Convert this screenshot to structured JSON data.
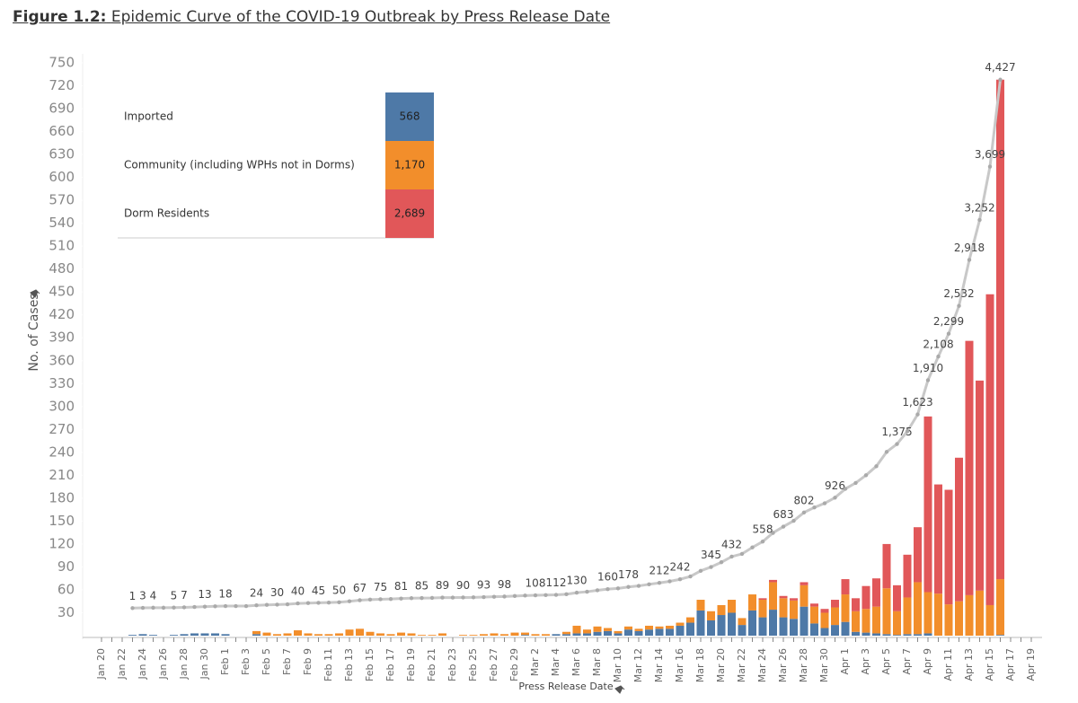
{
  "chart_data": {
    "type": "bar",
    "stacked": true,
    "figure_label": "Figure 1.2:",
    "title": "Epidemic Curve of the COVID-19 Outbreak by Press Release Date",
    "x_label": "Press Release Date",
    "y_label": "No. of Cases",
    "ylim": [
      0,
      750
    ],
    "yticks": [
      30,
      60,
      90,
      120,
      150,
      180,
      210,
      240,
      270,
      300,
      330,
      360,
      390,
      420,
      450,
      480,
      510,
      540,
      570,
      600,
      630,
      660,
      690,
      720,
      750
    ],
    "y2lim": [
      -230,
      4568
    ],
    "categories": [
      "Jan 20",
      null,
      "Jan 22",
      null,
      "Jan 24",
      null,
      "Jan 26",
      null,
      "Jan 28",
      null,
      "Jan 30",
      null,
      "Feb 1",
      null,
      "Feb 3",
      null,
      "Feb 5",
      null,
      "Feb 7",
      null,
      "Feb 9",
      null,
      "Feb 11",
      null,
      "Feb 13",
      null,
      "Feb 15",
      null,
      "Feb 17",
      null,
      "Feb 19",
      null,
      "Feb 21",
      null,
      "Feb 23",
      null,
      "Feb 25",
      null,
      "Feb 27",
      null,
      "Feb 29",
      null,
      "Mar 2",
      null,
      "Mar 4",
      null,
      "Mar 6",
      null,
      "Mar 8",
      null,
      "Mar 10",
      null,
      "Mar 12",
      null,
      "Mar 14",
      null,
      "Mar 16",
      null,
      "Mar 18",
      null,
      "Mar 20",
      null,
      "Mar 22",
      null,
      "Mar 24",
      null,
      "Mar 26",
      null,
      "Mar 28",
      null,
      "Mar 30",
      null,
      "Apr 1",
      null,
      "Apr 3",
      null,
      "Apr 5",
      null,
      "Apr 7",
      null,
      "Apr 9",
      null,
      "Apr 11",
      null,
      "Apr 13",
      null,
      "Apr 15",
      null,
      "Apr 17",
      null,
      "Apr 19"
    ],
    "series": [
      {
        "name": "Imported",
        "color": "#4e79a7",
        "total": 568,
        "values": [
          0,
          0,
          0,
          1,
          2,
          1,
          0,
          1,
          2,
          3,
          3,
          3,
          2,
          0,
          0,
          2,
          0,
          0,
          0,
          0,
          0,
          0,
          0,
          0,
          0,
          0,
          0,
          0,
          0,
          0,
          0,
          0,
          0,
          0,
          0,
          0,
          0,
          0,
          0,
          0,
          0,
          1,
          0,
          0,
          2,
          2,
          3,
          3,
          5,
          6,
          3,
          8,
          6,
          8,
          9,
          9,
          13,
          17,
          33,
          20,
          27,
          30,
          14,
          33,
          24,
          34,
          24,
          22,
          38,
          16,
          10,
          14,
          18,
          5,
          4,
          3,
          2,
          1,
          2,
          2,
          3,
          0,
          0,
          0,
          0,
          0,
          0,
          1,
          0,
          0,
          0
        ]
      },
      {
        "name": "Community (including WPHs not in Dorms)",
        "color": "#f28e2b",
        "total": {
          "value": 1170,
          "label": "1,170"
        },
        "values": [
          0,
          0,
          0,
          0,
          0,
          0,
          0,
          0,
          0,
          0,
          0,
          0,
          0,
          0,
          0,
          4,
          4,
          2,
          3,
          7,
          3,
          2,
          2,
          3,
          8,
          9,
          5,
          3,
          2,
          4,
          3,
          1,
          1,
          3,
          0,
          1,
          1,
          2,
          3,
          2,
          4,
          3,
          2,
          2,
          0,
          3,
          10,
          5,
          7,
          4,
          3,
          4,
          3,
          5,
          3,
          4,
          4,
          7,
          14,
          12,
          13,
          17,
          9,
          21,
          23,
          36,
          25,
          24,
          28,
          22,
          20,
          23,
          36,
          27,
          31,
          35,
          60,
          31,
          48,
          68,
          54,
          55,
          41,
          45,
          53,
          59,
          40,
          73,
          0,
          0,
          0
        ]
      },
      {
        "name": "Dorm Residents",
        "color": "#e15759",
        "total": {
          "value": 2689,
          "label": "2,689"
        },
        "values": [
          0,
          0,
          0,
          0,
          0,
          0,
          0,
          0,
          0,
          0,
          0,
          0,
          0,
          0,
          0,
          0,
          0,
          0,
          0,
          0,
          0,
          0,
          0,
          0,
          0,
          0,
          0,
          0,
          0,
          0,
          0,
          0,
          0,
          0,
          0,
          0,
          0,
          0,
          0,
          0,
          0,
          0,
          0,
          0,
          0,
          0,
          0,
          0,
          0,
          0,
          0,
          0,
          0,
          0,
          0,
          0,
          0,
          0,
          0,
          0,
          0,
          0,
          0,
          0,
          2,
          3,
          3,
          3,
          4,
          4,
          5,
          10,
          20,
          17,
          30,
          37,
          58,
          34,
          56,
          72,
          230,
          143,
          150,
          188,
          333,
          275,
          407,
          654,
          0,
          0,
          0
        ]
      }
    ],
    "line": {
      "type": "line",
      "axis": "y2",
      "color": "#c8c8c8",
      "values": [
        null,
        null,
        null,
        1,
        3,
        4,
        4,
        5,
        7,
        10,
        13,
        16,
        18,
        18,
        18,
        24,
        28,
        30,
        33,
        40,
        43,
        45,
        47,
        50,
        58,
        67,
        72,
        75,
        77,
        81,
        84,
        85,
        86,
        89,
        89,
        90,
        91,
        93,
        96,
        98,
        102,
        106,
        108,
        110,
        112,
        117,
        130,
        138,
        150,
        160,
        166,
        178,
        187,
        200,
        212,
        225,
        242,
        266,
        313,
        345,
        385,
        432,
        455,
        509,
        558,
        631,
        683,
        732,
        802,
        844,
        879,
        926,
        1000,
        1049,
        1114,
        1189,
        1309,
        1375,
        1481,
        1623,
        1910,
        2108,
        2299,
        2532,
        2918,
        3252,
        3699,
        4427,
        null,
        null,
        null
      ],
      "value_labels": [
        null,
        null,
        null,
        "1",
        "3",
        "4",
        null,
        "5",
        "7",
        null,
        "13",
        null,
        "18",
        null,
        null,
        "24",
        null,
        "30",
        null,
        "40",
        null,
        "45",
        null,
        "50",
        null,
        "67",
        null,
        "75",
        null,
        "81",
        null,
        "85",
        null,
        "89",
        null,
        "90",
        null,
        "93",
        null,
        "98",
        null,
        null,
        "108",
        null,
        "112",
        null,
        "130",
        null,
        null,
        "160",
        null,
        "178",
        null,
        null,
        "212",
        null,
        "242",
        null,
        null,
        "345",
        null,
        "432",
        null,
        null,
        "558",
        null,
        "683",
        null,
        "802",
        null,
        null,
        "926",
        null,
        null,
        null,
        null,
        null,
        "1,375",
        null,
        "1,623",
        "1,910",
        "2,108",
        "2,299",
        "2,532",
        "2,918",
        "3,252",
        "3,699",
        "4,427",
        null,
        null,
        null
      ]
    }
  }
}
